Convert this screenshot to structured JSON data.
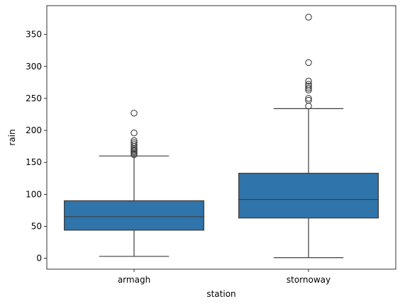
{
  "chart_data": {
    "type": "box",
    "title": "",
    "xlabel": "station",
    "ylabel": "rain",
    "ylim": [
      -17,
      395
    ],
    "yticks": [
      0,
      50,
      100,
      150,
      200,
      250,
      300,
      350
    ],
    "categories": [
      "armagh",
      "stornoway"
    ],
    "box_color": "#2f74aa",
    "line_color": "#3d3d3d",
    "grid": false,
    "legend": "none",
    "boxes": [
      {
        "name": "armagh",
        "whisker_low": 3,
        "q1": 44,
        "median": 65,
        "q3": 90,
        "whisker_high": 160,
        "outliers": [
          162,
          164,
          166,
          168,
          170,
          172,
          175,
          178,
          181,
          184,
          196,
          227
        ]
      },
      {
        "name": "stornoway",
        "whisker_low": 1,
        "q1": 63,
        "median": 92,
        "q3": 133,
        "whisker_high": 234,
        "outliers": [
          238,
          247,
          250,
          263,
          266,
          269,
          272,
          277,
          306,
          377
        ]
      }
    ]
  }
}
